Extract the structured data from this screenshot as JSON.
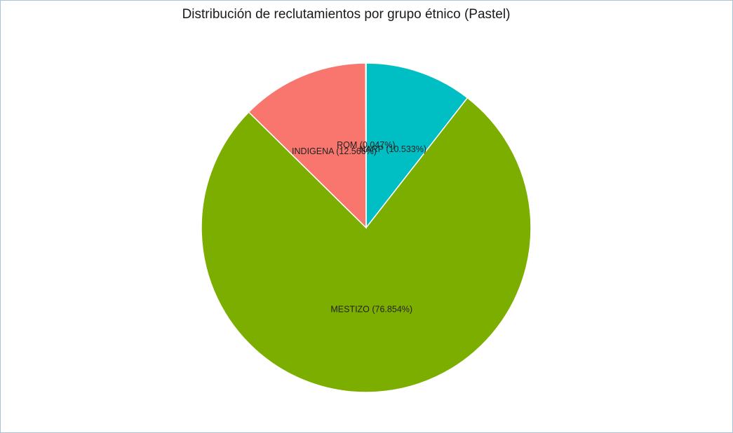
{
  "chart_data": {
    "type": "pie",
    "title": "Distribución de reclutamientos por grupo étnico (Pastel)",
    "slices": [
      {
        "name": "NARP",
        "value": 10.533,
        "label": "NARP (10.533%)",
        "color": "#00BFC4"
      },
      {
        "name": "MESTIZO",
        "value": 76.854,
        "label": "MESTIZO (76.854%)",
        "color": "#7CAE00"
      },
      {
        "name": "INDIGENA",
        "value": 12.566,
        "label": "INDIGENA (12.566%)",
        "color": "#F8766D"
      },
      {
        "name": "ROM",
        "value": 0.047,
        "label": "ROM (0.047%)",
        "color": "#C77CFF"
      }
    ],
    "start": "12 o'clock",
    "direction": "clockwise",
    "legend": "none"
  }
}
